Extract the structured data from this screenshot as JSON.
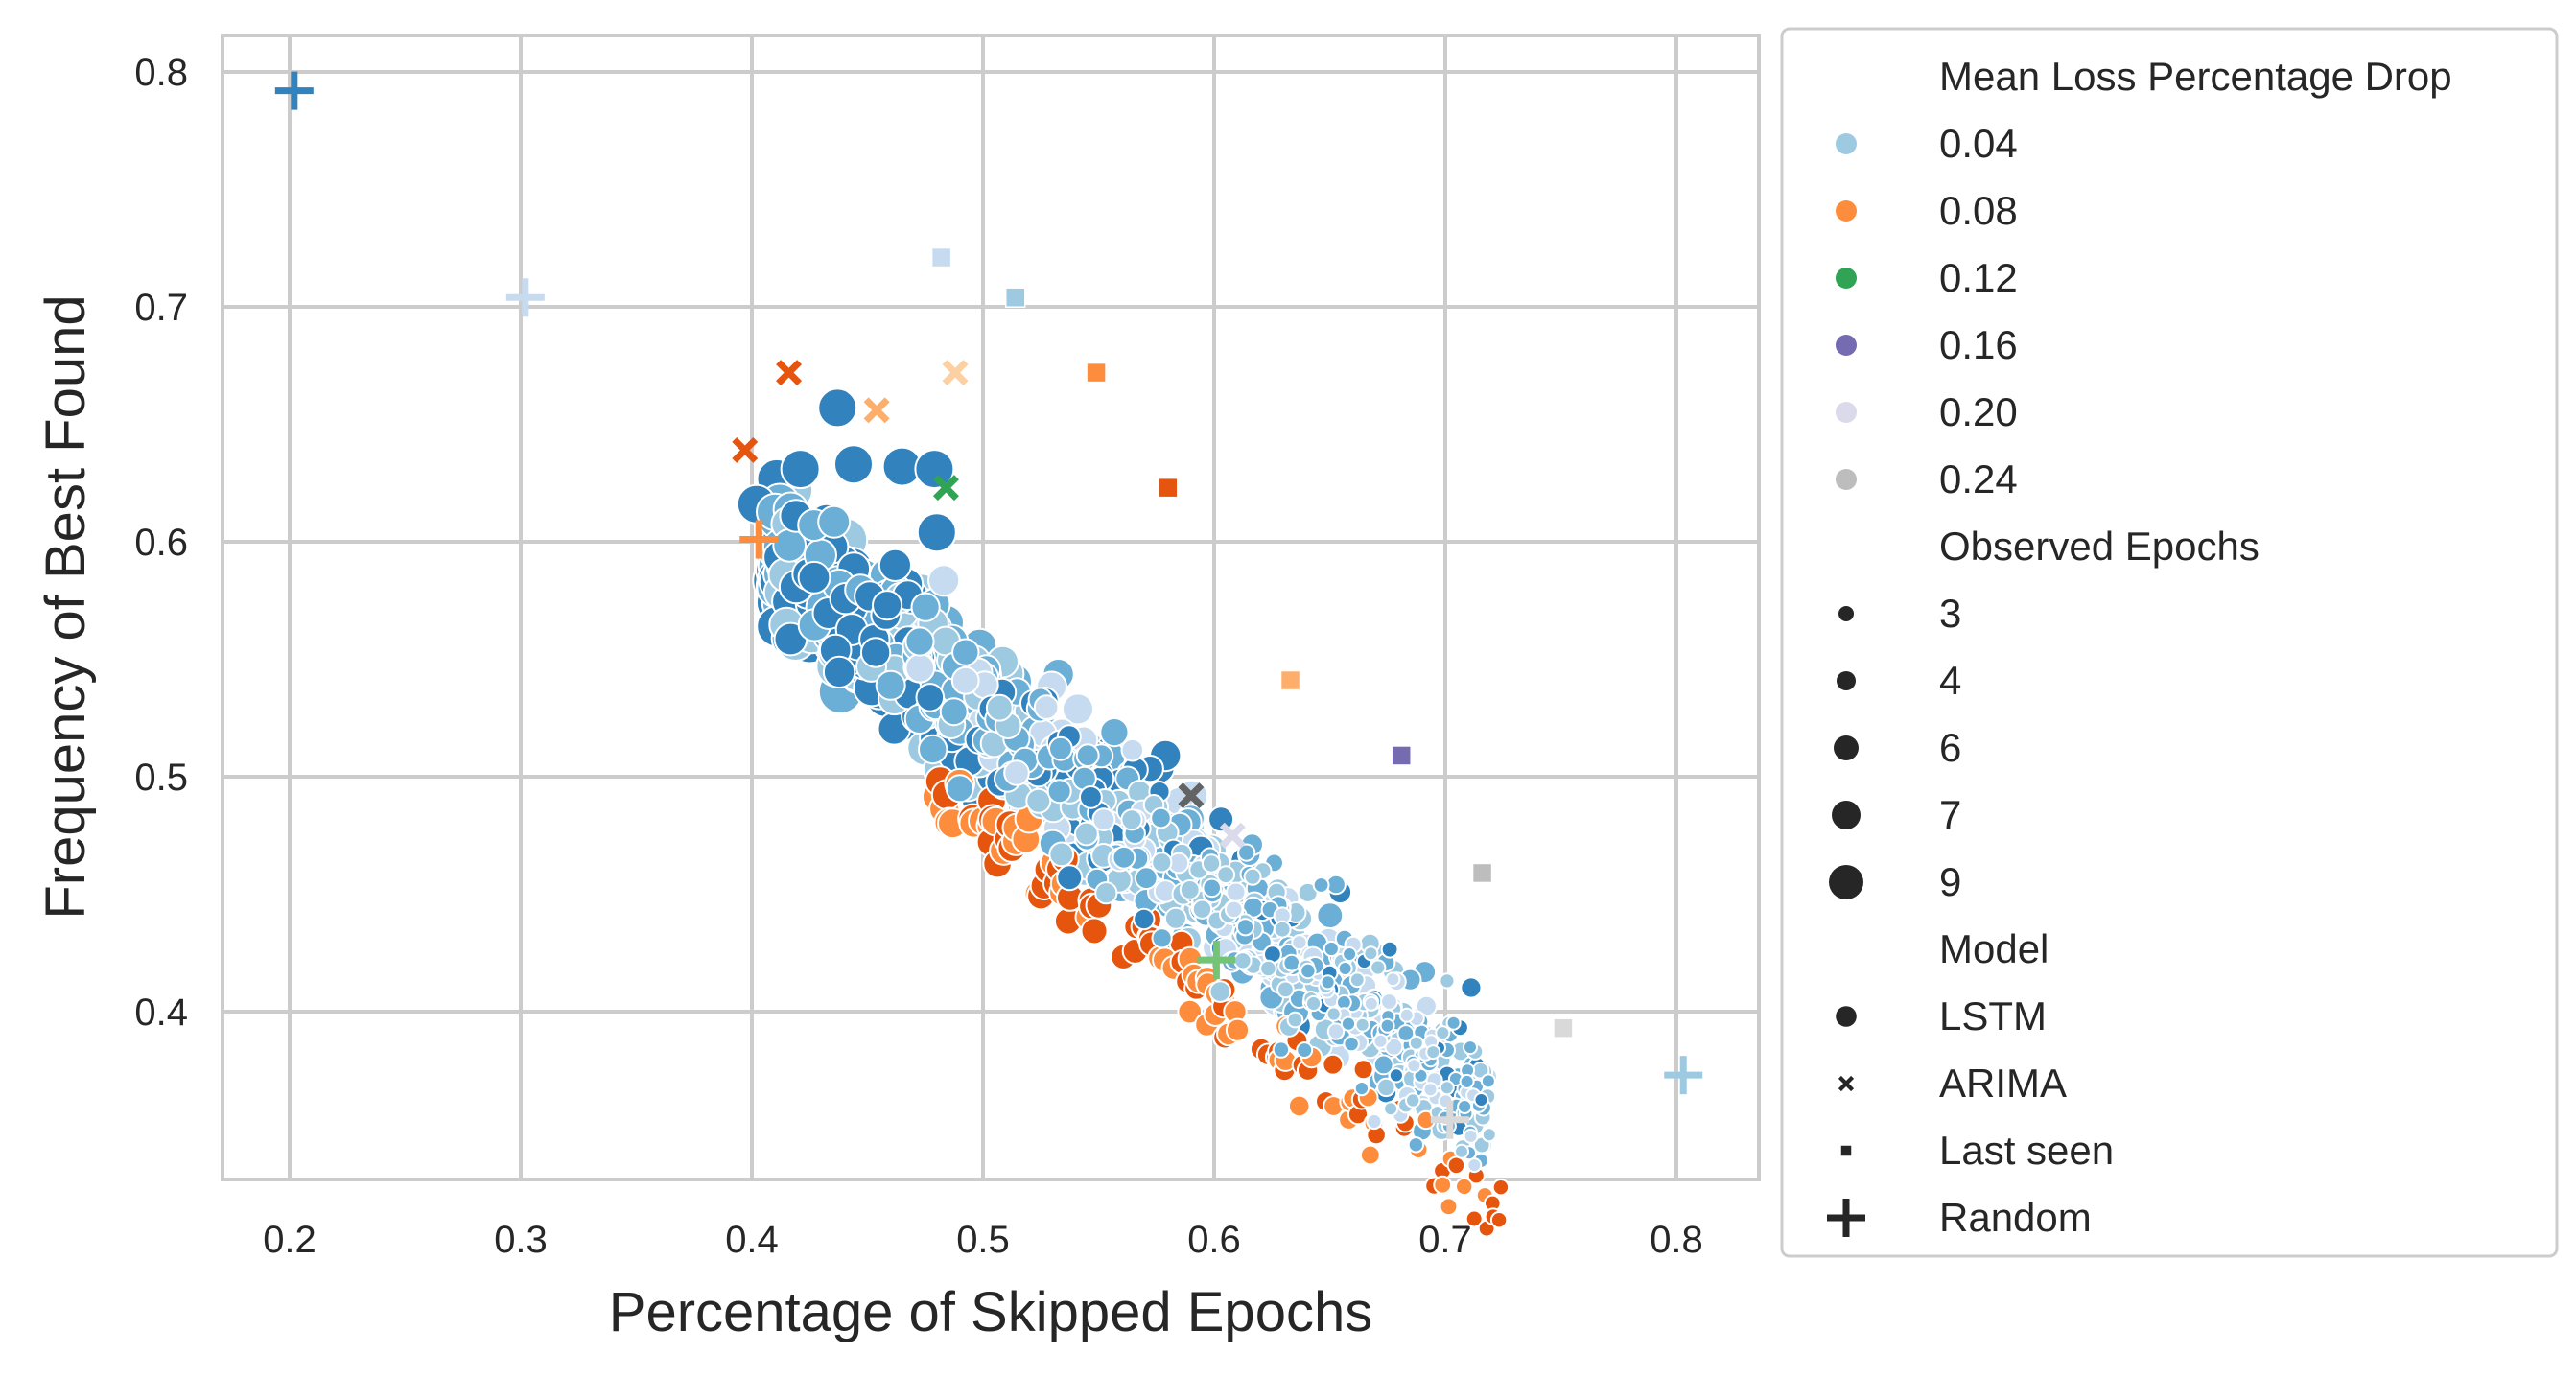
{
  "chart_data": {
    "type": "scatter",
    "title": "",
    "xlabel": "Percentage of Skipped Epochs",
    "ylabel": "Frequency of Best Found",
    "xlim": [
      0.17,
      0.835
    ],
    "ylim": [
      0.328,
      0.82
    ],
    "xticks": [
      {
        "value": 0.2,
        "label": "0.2"
      },
      {
        "value": 0.3,
        "label": "0.3"
      },
      {
        "value": 0.4,
        "label": "0.4"
      },
      {
        "value": 0.5,
        "label": "0.5"
      },
      {
        "value": 0.6,
        "label": "0.6"
      },
      {
        "value": 0.7,
        "label": "0.7"
      },
      {
        "value": 0.8,
        "label": "0.8"
      }
    ],
    "yticks": [
      {
        "value": 0.4,
        "label": "0.4"
      },
      {
        "value": 0.5,
        "label": "0.5"
      },
      {
        "value": 0.6,
        "label": "0.6"
      },
      {
        "value": 0.7,
        "label": "0.7"
      },
      {
        "value": 0.8,
        "label": "0.8"
      }
    ],
    "grid": true,
    "legend_position": "outside-right",
    "legend": {
      "hue_title": "Mean Loss Percentage Drop",
      "hue_entries": [
        {
          "label": "0.04",
          "color": "#9ecae1"
        },
        {
          "label": "0.08",
          "color": "#fd8d3c"
        },
        {
          "label": "0.12",
          "color": "#31a354"
        },
        {
          "label": "0.16",
          "color": "#756bb1"
        },
        {
          "label": "0.20",
          "color": "#dadaeb"
        },
        {
          "label": "0.24",
          "color": "#bdbdbd"
        }
      ],
      "size_title": "Observed Epochs",
      "size_entries": [
        {
          "label": "3",
          "value": 3
        },
        {
          "label": "4",
          "value": 4
        },
        {
          "label": "6",
          "value": 6
        },
        {
          "label": "7",
          "value": 7
        },
        {
          "label": "9",
          "value": 9
        }
      ],
      "style_title": "Model",
      "style_entries": [
        {
          "label": "LSTM",
          "marker": "circle"
        },
        {
          "label": "ARIMA",
          "marker": "x"
        },
        {
          "label": "Last seen",
          "marker": "square"
        },
        {
          "label": "Random",
          "marker": "plus"
        }
      ]
    },
    "annotated_points": [
      {
        "model": "Random",
        "x": 0.202,
        "y": 0.792,
        "color": "#3182bd"
      },
      {
        "model": "Random",
        "x": 0.302,
        "y": 0.704,
        "color": "#c6dbef"
      },
      {
        "model": "Random",
        "x": 0.403,
        "y": 0.601,
        "color": "#fd8d3c"
      },
      {
        "model": "Random",
        "x": 0.601,
        "y": 0.422,
        "color": "#74c476"
      },
      {
        "model": "Random",
        "x": 0.803,
        "y": 0.373,
        "color": "#9ecae1"
      },
      {
        "model": "Random",
        "x": 0.702,
        "y": 0.354,
        "color": "#d9d9d9"
      },
      {
        "model": "Last seen",
        "x": 0.482,
        "y": 0.721,
        "color": "#c6dbef"
      },
      {
        "model": "Last seen",
        "x": 0.514,
        "y": 0.704,
        "color": "#9ecae1"
      },
      {
        "model": "Last seen",
        "x": 0.549,
        "y": 0.672,
        "color": "#fd8d3c"
      },
      {
        "model": "Last seen",
        "x": 0.58,
        "y": 0.623,
        "color": "#e6550d"
      },
      {
        "model": "Last seen",
        "x": 0.633,
        "y": 0.541,
        "color": "#fdae6b"
      },
      {
        "model": "Last seen",
        "x": 0.681,
        "y": 0.509,
        "color": "#756bb1"
      },
      {
        "model": "Last seen",
        "x": 0.716,
        "y": 0.459,
        "color": "#bdbdbd"
      },
      {
        "model": "Last seen",
        "x": 0.751,
        "y": 0.393,
        "color": "#d9d9d9"
      },
      {
        "model": "ARIMA",
        "x": 0.416,
        "y": 0.672,
        "color": "#e6550d"
      },
      {
        "model": "ARIMA",
        "x": 0.397,
        "y": 0.639,
        "color": "#e6550d"
      },
      {
        "model": "ARIMA",
        "x": 0.454,
        "y": 0.656,
        "color": "#fdae6b"
      },
      {
        "model": "ARIMA",
        "x": 0.488,
        "y": 0.672,
        "color": "#fdd0a2"
      },
      {
        "model": "ARIMA",
        "x": 0.484,
        "y": 0.623,
        "color": "#31a354"
      },
      {
        "model": "ARIMA",
        "x": 0.59,
        "y": 0.492,
        "color": "#636363"
      },
      {
        "model": "ARIMA",
        "x": 0.608,
        "y": 0.475,
        "color": "#dadaeb"
      }
    ],
    "lstm_cloud": {
      "model": "LSTM",
      "description_x_range": [
        0.4,
        0.73
      ],
      "description_y_range": [
        0.35,
        0.66
      ],
      "trend": "negative linear",
      "colors": [
        "#3182bd",
        "#6baed6",
        "#9ecae1",
        "#c6dbef",
        "#e6550d",
        "#fd8d3c"
      ]
    }
  }
}
